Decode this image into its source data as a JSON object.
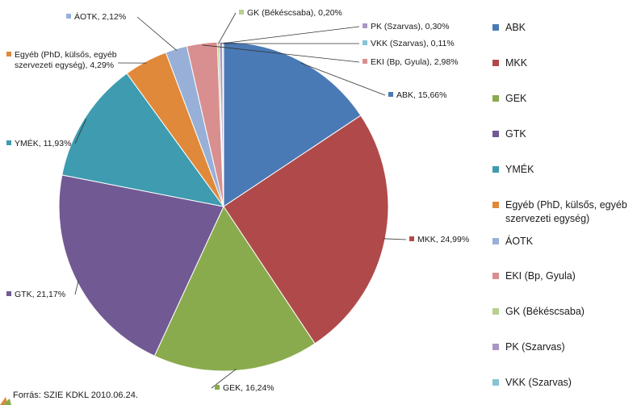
{
  "source_note": "Forrás: SZIE KDKL 2010.06.24.",
  "chart_data": {
    "type": "pie",
    "start_angle_deg": 0,
    "direction": "clockwise",
    "legend_position": "right",
    "slices": [
      {
        "name": "ABK",
        "value": 15.66,
        "label": "ABK, 15,66%",
        "color": "#4a7ab5"
      },
      {
        "name": "MKK",
        "value": 24.99,
        "label": "MKK, 24,99%",
        "color": "#b04a4a"
      },
      {
        "name": "GEK",
        "value": 16.24,
        "label": "GEK, 16,24%",
        "color": "#8aab4d"
      },
      {
        "name": "GTK",
        "value": 21.17,
        "label": "GTK, 21,17%",
        "color": "#715a93"
      },
      {
        "name": "YMÉK",
        "value": 11.93,
        "label": "YMÉK, 11,93%",
        "color": "#3e9bb0"
      },
      {
        "name": "Egyéb (PhD, külsős, egyéb szervezeti egység)",
        "value": 4.29,
        "label": "Egyéb (PhD, külsős, egyéb szervezeti egység), 4,29%",
        "color": "#e0893a"
      },
      {
        "name": "ÁOTK",
        "value": 2.12,
        "label": "ÁOTK, 2,12%",
        "color": "#98b0d8"
      },
      {
        "name": "EKI (Bp, Gyula)",
        "value": 2.98,
        "label": "EKI (Bp, Gyula), 2,98%",
        "color": "#d98f8f"
      },
      {
        "name": "GK (Békéscsaba)",
        "value": 0.2,
        "label": "GK (Békéscsaba), 0,20%",
        "color": "#b8cf8f"
      },
      {
        "name": "PK (Szarvas)",
        "value": 0.3,
        "label": "PK (Szarvas), 0,30%",
        "color": "#a996c4"
      },
      {
        "name": "VKK (Szarvas)",
        "value": 0.11,
        "label": "VKK (Szarvas), 0,11%",
        "color": "#86c4d4"
      }
    ]
  }
}
